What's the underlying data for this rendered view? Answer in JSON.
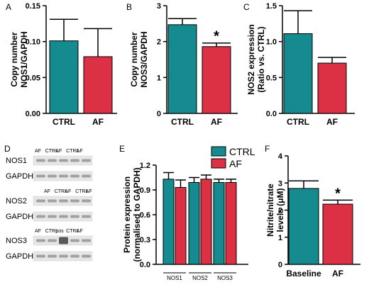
{
  "colors": {
    "teal": "#158B8F",
    "red": "#DC3045"
  },
  "chart_data": [
    {
      "id": "A",
      "type": "bar",
      "letter": "A",
      "ylabel_lines": [
        "Copy number",
        "NOS1/GAPDH"
      ],
      "ylim": [
        0,
        0.15
      ],
      "yticks": [
        0.0,
        0.05,
        0.1,
        0.15
      ],
      "tick_labels": [
        "0.00",
        "0.05",
        "0.10",
        "0.15"
      ],
      "categories": [
        "CTRL",
        "AF"
      ],
      "values": [
        0.101,
        0.079
      ],
      "errors": [
        0.03,
        0.039
      ],
      "colors": [
        "#158B8F",
        "#DC3045"
      ],
      "annotations": [
        "",
        ""
      ]
    },
    {
      "id": "B",
      "type": "bar",
      "letter": "B",
      "ylabel_lines": [
        "Copy number",
        "NOS3/GAPDH"
      ],
      "ylim": [
        0,
        3
      ],
      "yticks": [
        0,
        1,
        2,
        3
      ],
      "tick_labels": [
        "0",
        "1",
        "2",
        "3"
      ],
      "categories": [
        "CTRL",
        "AF"
      ],
      "values": [
        2.47,
        1.86
      ],
      "errors": [
        0.17,
        0.1
      ],
      "colors": [
        "#158B8F",
        "#DC3045"
      ],
      "annotations": [
        "",
        "*"
      ]
    },
    {
      "id": "C",
      "type": "bar",
      "letter": "C",
      "ylabel_lines": [
        "NOS2 expression",
        "(Ratio vs. CTRL)"
      ],
      "ylim": [
        0,
        1.5
      ],
      "yticks": [
        0.0,
        0.5,
        1.0,
        1.5
      ],
      "tick_labels": [
        "0.0",
        "0.5",
        "1.0",
        "1.5"
      ],
      "categories": [
        "CTRL",
        "AF"
      ],
      "values": [
        1.11,
        0.7
      ],
      "errors": [
        0.32,
        0.08
      ],
      "colors": [
        "#158B8F",
        "#DC3045"
      ],
      "annotations": [
        "",
        ""
      ]
    },
    {
      "id": "E",
      "type": "bar",
      "letter": "E",
      "ylabel_lines": [
        "Protein expression",
        "(normalised to GAPDH)"
      ],
      "ylim": [
        0,
        1.2
      ],
      "yticks": [
        0.0,
        0.3,
        0.6,
        0.9,
        1.2
      ],
      "tick_labels": [
        "0.0",
        "0.3",
        "0.6",
        "0.9",
        "1.2"
      ],
      "categories": [
        "NOS1",
        "NOS2",
        "NOS3"
      ],
      "series": [
        {
          "name": "CTRL",
          "color": "#158B8F",
          "values": [
            1.03,
            0.99,
            0.99
          ],
          "errors": [
            0.08,
            0.06,
            0.04
          ]
        },
        {
          "name": "AF",
          "color": "#DC3045",
          "values": [
            0.93,
            1.03,
            0.99
          ],
          "errors": [
            0.09,
            0.05,
            0.04
          ]
        }
      ],
      "legend": "top-right"
    },
    {
      "id": "F",
      "type": "bar",
      "letter": "F",
      "ylabel_lines": [
        "Nitrite/nitrate",
        "levels (μM)"
      ],
      "ylim": [
        0,
        4
      ],
      "yticks": [
        0,
        1,
        2,
        3,
        4
      ],
      "tick_labels": [
        "0",
        "1",
        "2",
        "3",
        "4"
      ],
      "categories": [
        "Baseline",
        "AF"
      ],
      "values": [
        2.8,
        2.22
      ],
      "errors": [
        0.28,
        0.15
      ],
      "colors": [
        "#158B8F",
        "#DC3045"
      ],
      "annotations": [
        "",
        "*"
      ]
    }
  ],
  "blot": {
    "letter": "D",
    "panels": [
      {
        "lanes": [
          "AF",
          "CTRL",
          "AF",
          "CTRL",
          "AF"
        ],
        "rows": [
          "NOS1",
          "GAPDH"
        ]
      },
      {
        "lanes": [
          "AF",
          "CTRL",
          "AF",
          "CTRL",
          "AF"
        ],
        "rows": [
          "NOS2",
          "GAPDH"
        ]
      },
      {
        "lanes": [
          "AF",
          "CTRL",
          "pos",
          "CTRL",
          "AF"
        ],
        "rows": [
          "NOS3",
          "GAPDH"
        ]
      }
    ]
  }
}
